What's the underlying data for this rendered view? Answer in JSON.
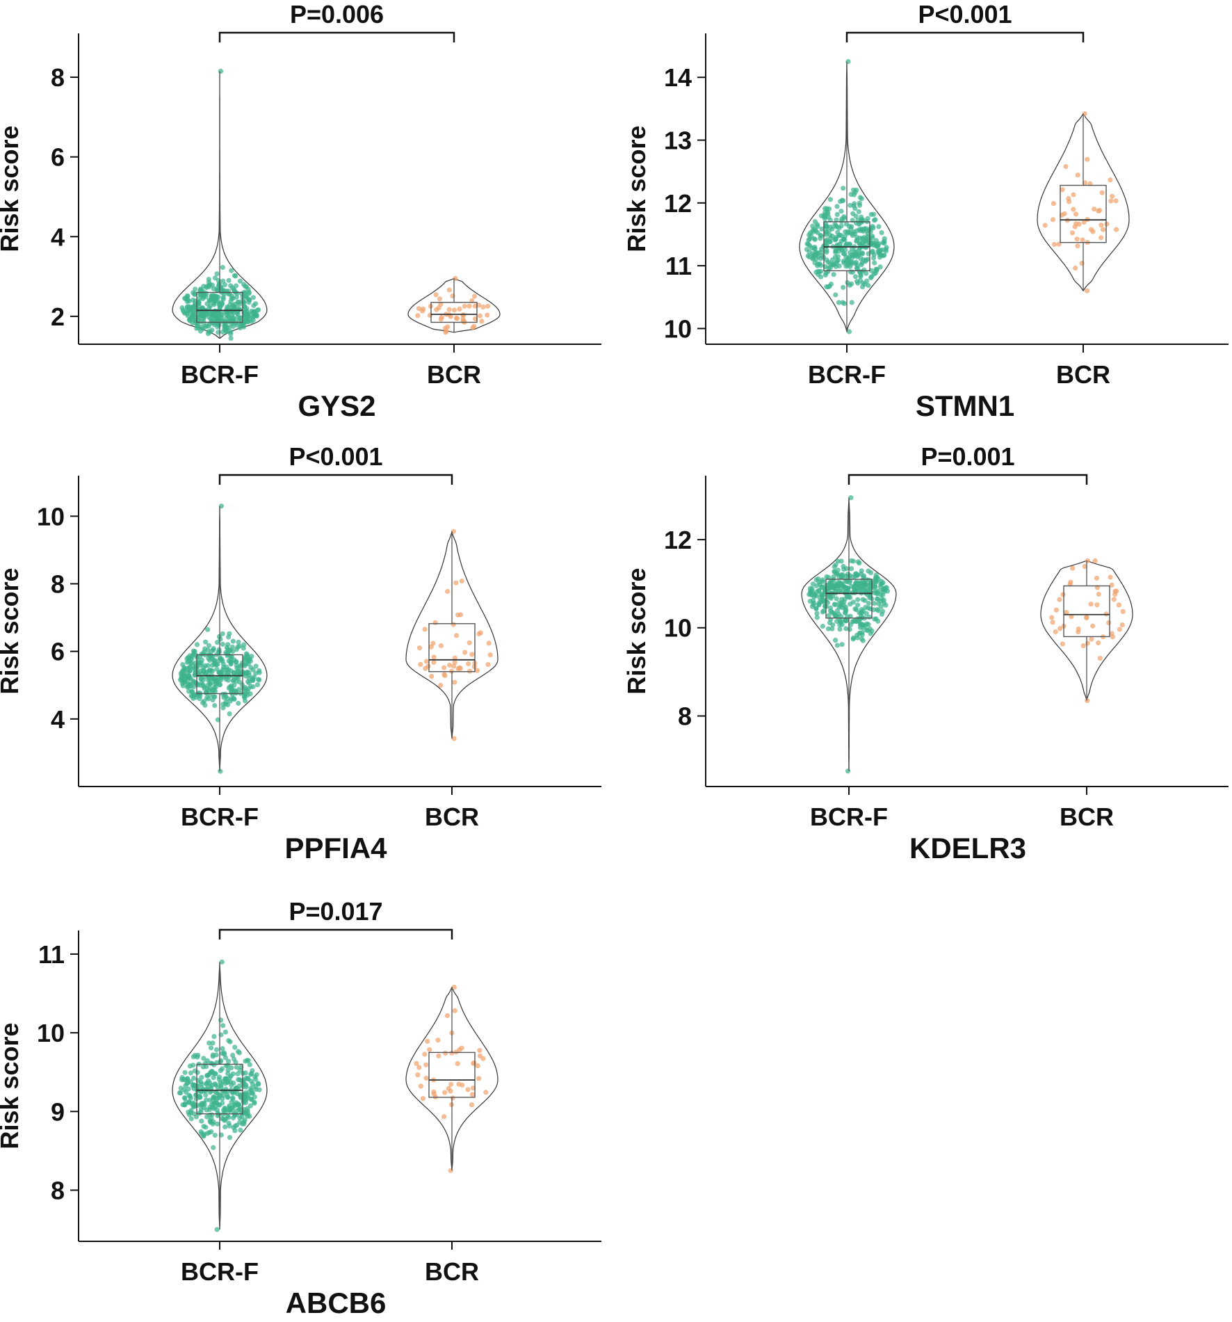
{
  "chart_data": [
    {
      "type": "violin",
      "title": "GYS2",
      "ylabel": "Risk score",
      "categories": [
        "BCR-F",
        "BCR"
      ],
      "ylim": [
        1.3,
        9.1
      ],
      "yticks": [
        2,
        4,
        6,
        8
      ],
      "pvalue": "P=0.006",
      "series": [
        {
          "name": "BCR-F",
          "color": "#3db38e",
          "min": 1.45,
          "q1": 1.85,
          "median": 2.15,
          "q3": 2.6,
          "max": 8.15,
          "n": 380
        },
        {
          "name": "BCR",
          "color": "#f0a36e",
          "min": 1.6,
          "q1": 1.85,
          "median": 2.05,
          "q3": 2.35,
          "max": 2.95,
          "n": 48
        }
      ]
    },
    {
      "type": "violin",
      "title": "STMN1",
      "ylabel": "Risk score",
      "categories": [
        "BCR-F",
        "BCR"
      ],
      "ylim": [
        9.75,
        14.7
      ],
      "yticks": [
        10,
        11,
        12,
        13,
        14
      ],
      "pvalue": "P<0.001",
      "series": [
        {
          "name": "BCR-F",
          "color": "#3db38e",
          "min": 9.95,
          "q1": 10.92,
          "median": 11.3,
          "q3": 11.7,
          "max": 14.25,
          "n": 380
        },
        {
          "name": "BCR",
          "color": "#f0a36e",
          "min": 10.6,
          "q1": 11.37,
          "median": 11.73,
          "q3": 12.28,
          "max": 13.42,
          "n": 48
        }
      ]
    },
    {
      "type": "violin",
      "title": "PPFIA4",
      "ylabel": "Risk score",
      "categories": [
        "BCR-F",
        "BCR"
      ],
      "ylim": [
        2.0,
        11.2
      ],
      "yticks": [
        4,
        6,
        8,
        10
      ],
      "pvalue": "P<0.001",
      "series": [
        {
          "name": "BCR-F",
          "color": "#3db38e",
          "min": 2.45,
          "q1": 4.75,
          "median": 5.28,
          "q3": 5.9,
          "max": 10.3,
          "n": 380
        },
        {
          "name": "BCR",
          "color": "#f0a36e",
          "min": 3.42,
          "q1": 5.4,
          "median": 5.75,
          "q3": 6.82,
          "max": 9.55,
          "n": 48
        }
      ]
    },
    {
      "type": "violin",
      "title": "KDELR3",
      "ylabel": "Risk score",
      "categories": [
        "BCR-F",
        "BCR"
      ],
      "ylim": [
        6.4,
        13.45
      ],
      "yticks": [
        8,
        10,
        12
      ],
      "pvalue": "P=0.001",
      "series": [
        {
          "name": "BCR-F",
          "color": "#3db38e",
          "min": 6.75,
          "q1": 10.22,
          "median": 10.78,
          "q3": 11.1,
          "max": 12.95,
          "n": 380
        },
        {
          "name": "BCR",
          "color": "#f0a36e",
          "min": 8.35,
          "q1": 9.8,
          "median": 10.3,
          "q3": 10.95,
          "max": 11.52,
          "n": 48
        }
      ]
    },
    {
      "type": "violin",
      "title": "ABCB6",
      "ylabel": "Risk score",
      "categories": [
        "BCR-F",
        "BCR"
      ],
      "ylim": [
        7.35,
        11.3
      ],
      "yticks": [
        8,
        9,
        10,
        11
      ],
      "pvalue": "P=0.017",
      "series": [
        {
          "name": "BCR-F",
          "color": "#3db38e",
          "min": 7.5,
          "q1": 8.97,
          "median": 9.27,
          "q3": 9.6,
          "max": 10.9,
          "n": 380
        },
        {
          "name": "BCR",
          "color": "#f0a36e",
          "min": 8.25,
          "q1": 9.18,
          "median": 9.4,
          "q3": 9.75,
          "max": 10.58,
          "n": 48
        }
      ]
    }
  ]
}
